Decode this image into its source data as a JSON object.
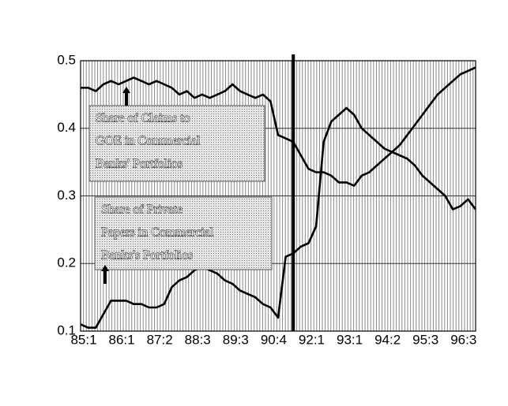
{
  "chart_data": {
    "type": "line",
    "categories": [
      "85:1",
      null,
      null,
      null,
      null,
      "86:1",
      null,
      null,
      null,
      null,
      "87:2",
      null,
      null,
      null,
      null,
      "88:3",
      null,
      null,
      null,
      null,
      "89:3",
      null,
      null,
      null,
      null,
      "90:4",
      null,
      null,
      null,
      null,
      "92:1",
      null,
      null,
      null,
      null,
      "93:1",
      null,
      null,
      null,
      null,
      "94:2",
      null,
      null,
      null,
      null,
      "95:3",
      null,
      null,
      null,
      null,
      "96:3",
      null,
      null
    ],
    "series": [
      {
        "name": "Share of Claims to GOE in Commercial Banks' Portfolios",
        "color": "#000000",
        "values": [
          0.46,
          0.46,
          0.455,
          0.465,
          0.47,
          0.465,
          0.47,
          0.475,
          0.47,
          0.465,
          0.47,
          0.465,
          0.46,
          0.45,
          0.455,
          0.445,
          0.45,
          0.445,
          0.45,
          0.455,
          0.465,
          0.455,
          0.45,
          0.445,
          0.45,
          0.44,
          0.39,
          0.385,
          0.38,
          0.36,
          0.34,
          0.335,
          0.335,
          0.33,
          0.32,
          0.32,
          0.315,
          0.33,
          0.335,
          0.345,
          0.355,
          0.365,
          0.375,
          0.39,
          0.405,
          0.42,
          0.435,
          0.45,
          0.46,
          0.47,
          0.48,
          0.485,
          0.49
        ]
      },
      {
        "name": "Share of Private Papers in Commercial Banks's Portfolios",
        "color": "#000000",
        "values": [
          0.11,
          0.105,
          0.105,
          0.125,
          0.145,
          0.145,
          0.145,
          0.14,
          0.14,
          0.135,
          0.135,
          0.14,
          0.165,
          0.175,
          0.18,
          0.19,
          0.195,
          0.19,
          0.185,
          0.175,
          0.17,
          0.16,
          0.155,
          0.15,
          0.14,
          0.135,
          0.12,
          0.21,
          0.215,
          0.225,
          0.23,
          0.255,
          0.38,
          0.41,
          0.42,
          0.43,
          0.42,
          0.4,
          0.39,
          0.38,
          0.37,
          0.365,
          0.36,
          0.355,
          0.345,
          0.33,
          0.32,
          0.31,
          0.3,
          0.28,
          0.285,
          0.295,
          0.28
        ]
      }
    ],
    "annotations": [
      {
        "lines": [
          "Share of Claims to",
          "GOE in Commercial",
          "Banks' Portfolios"
        ]
      },
      {
        "lines": [
          "Share of Private",
          "Papers in Commercial",
          "Banks's Portfolios"
        ]
      }
    ],
    "vlines": [
      28
    ],
    "ylim": [
      0.1,
      0.5
    ],
    "yticks": [
      0.1,
      0.2,
      0.3,
      0.4,
      0.5
    ],
    "grid": true
  }
}
